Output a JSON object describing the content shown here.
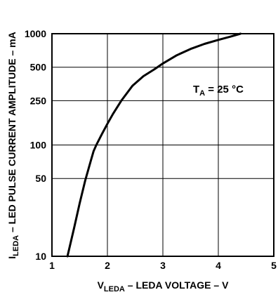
{
  "chart_data": {
    "type": "line",
    "title": "",
    "xlabel": {
      "main": "V",
      "sub": "LEDA",
      "rest": " – LEDA VOLTAGE – V"
    },
    "ylabel": {
      "main": "I",
      "sub": "LEDA",
      "rest": " – LED PULSE CURRENT AMPLITUDE – mA"
    },
    "xlim": [
      1,
      5
    ],
    "ylim": [
      10,
      1000
    ],
    "yscale": "log",
    "grid": true,
    "xticks": [
      1,
      2,
      3,
      4,
      5
    ],
    "xtick_labels": [
      "1",
      "2",
      "3",
      "4",
      "5"
    ],
    "yticks": [
      10,
      50,
      100,
      250,
      500,
      1000
    ],
    "ytick_labels": [
      "10",
      "50",
      "100",
      "250",
      "500",
      "1000"
    ],
    "annotation": {
      "main": "T",
      "sub": "A",
      "rest": " = 25 °C"
    },
    "series": [
      {
        "x": [
          1.28,
          1.4,
          1.5,
          1.6,
          1.7,
          1.75,
          1.8,
          1.9,
          2.0,
          2.1,
          2.25,
          2.45,
          2.65,
          2.85,
          3.0,
          3.25,
          3.5,
          3.75,
          4.0,
          4.2,
          4.4
        ],
        "y": [
          10,
          18,
          30,
          48,
          72,
          88,
          100,
          125,
          155,
          190,
          250,
          340,
          415,
          480,
          540,
          640,
          730,
          810,
          880,
          935,
          1000
        ],
        "color": "#000000"
      }
    ]
  }
}
